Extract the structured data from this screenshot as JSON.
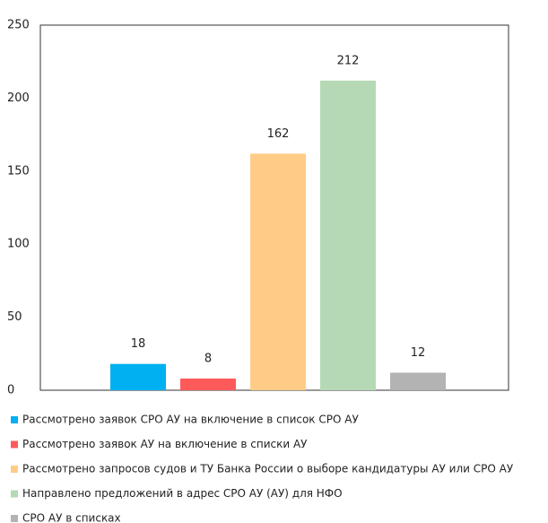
{
  "chart_data": {
    "type": "bar",
    "categories": [
      null
    ],
    "series": [
      {
        "name": "Рассмотрено заявок СРО АУ на включение в список СРО АУ",
        "color": "#00b0f0",
        "values": [
          18
        ]
      },
      {
        "name": "Рассмотрено заявок АУ на включение в списки АУ",
        "color": "#ff5a5a",
        "values": [
          8
        ]
      },
      {
        "name": "Рассмотрено запросов судов и ТУ Банка России о выборе кандидатуры АУ или СРО АУ",
        "color": "#ffcc88",
        "values": [
          162
        ]
      },
      {
        "name": "Направлено предложений в адрес СРО АУ (АУ) для НФО",
        "color": "#b5d9b5",
        "values": [
          212
        ]
      },
      {
        "name": "СРО АУ в списках",
        "color": "#b3b3b3",
        "values": [
          12
        ]
      }
    ],
    "ylim": [
      0,
      250
    ],
    "yticks": [
      0,
      50,
      100,
      150,
      200,
      250
    ],
    "grid": false,
    "legend": "bottom"
  }
}
